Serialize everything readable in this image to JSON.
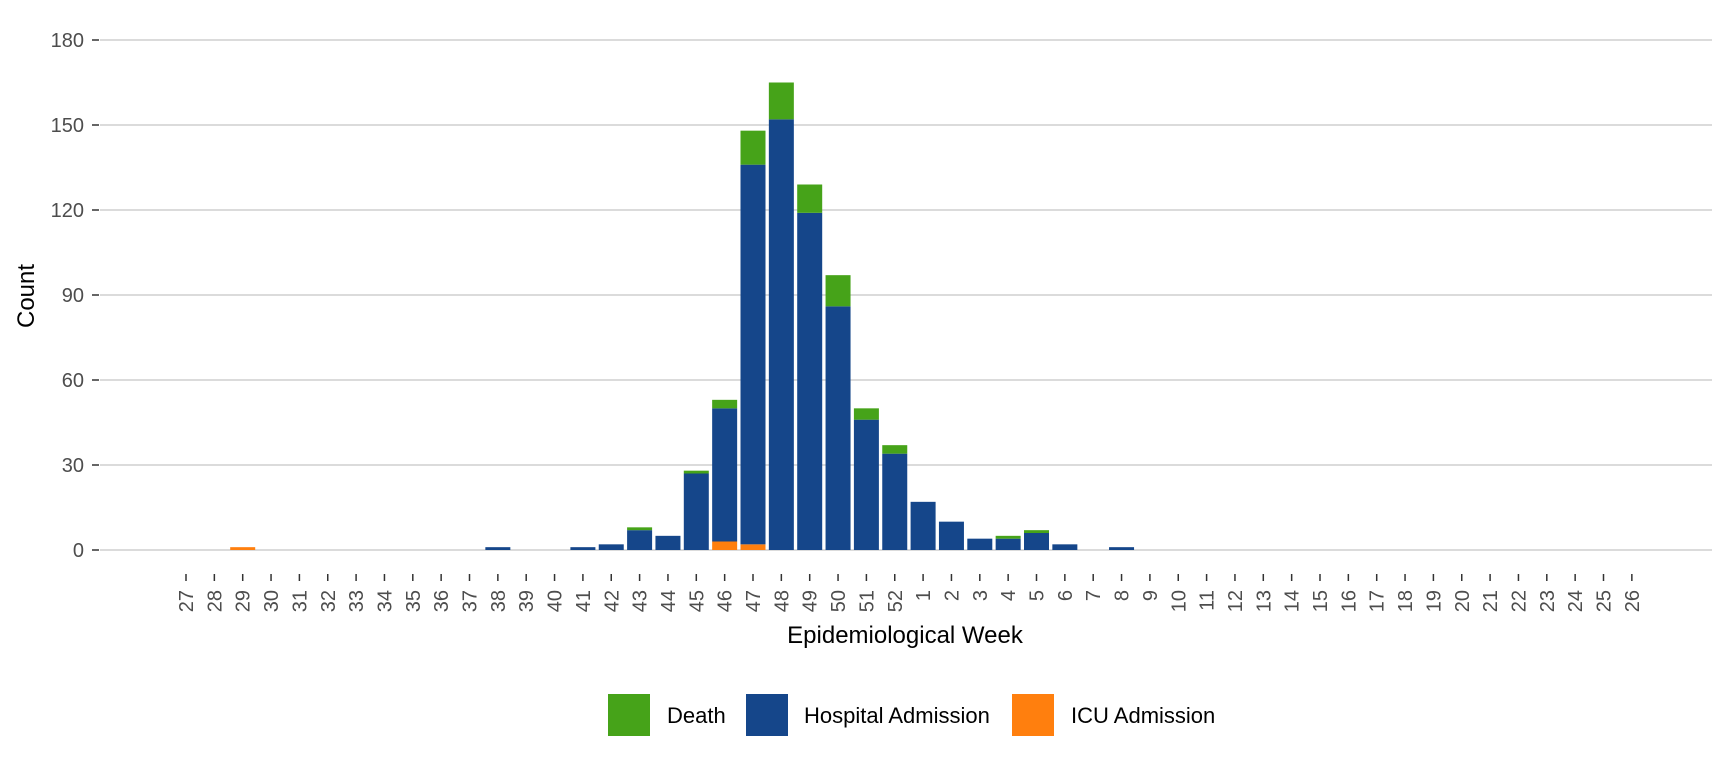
{
  "chart_data": {
    "type": "bar",
    "stacked": true,
    "title": "",
    "xlabel": "Epidemiological Week",
    "ylabel": "Count",
    "ylim": [
      0,
      180
    ],
    "yticks": [
      0,
      30,
      60,
      90,
      120,
      150,
      180
    ],
    "grid": "horizontal",
    "legend_position": "bottom",
    "categories": [
      "27",
      "28",
      "29",
      "30",
      "31",
      "32",
      "33",
      "34",
      "35",
      "36",
      "37",
      "38",
      "39",
      "40",
      "41",
      "42",
      "43",
      "44",
      "45",
      "46",
      "47",
      "48",
      "49",
      "50",
      "51",
      "52",
      "1",
      "2",
      "3",
      "4",
      "5",
      "6",
      "7",
      "8",
      "9",
      "10",
      "11",
      "12",
      "13",
      "14",
      "15",
      "16",
      "17",
      "18",
      "19",
      "20",
      "21",
      "22",
      "23",
      "24",
      "25",
      "26"
    ],
    "series": [
      {
        "name": "ICU Admission",
        "color": "#FF7F0E",
        "values": [
          0,
          0,
          1,
          0,
          0,
          0,
          0,
          0,
          0,
          0,
          0,
          0,
          0,
          0,
          0,
          0,
          0,
          0,
          0,
          3,
          2,
          0,
          0,
          0,
          0,
          0,
          0,
          0,
          0,
          0,
          0,
          0,
          0,
          0,
          0,
          0,
          0,
          0,
          0,
          0,
          0,
          0,
          0,
          0,
          0,
          0,
          0,
          0,
          0,
          0,
          0,
          0
        ]
      },
      {
        "name": "Hospital Admission",
        "color": "#15468A",
        "values": [
          0,
          0,
          0,
          0,
          0,
          0,
          0,
          0,
          0,
          0,
          0,
          1,
          0,
          0,
          1,
          2,
          7,
          5,
          27,
          47,
          134,
          152,
          119,
          86,
          46,
          34,
          17,
          10,
          4,
          4,
          6,
          2,
          0,
          1,
          0,
          0,
          0,
          0,
          0,
          0,
          0,
          0,
          0,
          0,
          0,
          0,
          0,
          0,
          0,
          0,
          0,
          0
        ]
      },
      {
        "name": "Death",
        "color": "#46A319",
        "values": [
          0,
          0,
          0,
          0,
          0,
          0,
          0,
          0,
          0,
          0,
          0,
          0,
          0,
          0,
          0,
          0,
          1,
          0,
          1,
          3,
          12,
          13,
          10,
          11,
          4,
          3,
          0,
          0,
          0,
          1,
          1,
          0,
          0,
          0,
          0,
          0,
          0,
          0,
          0,
          0,
          0,
          0,
          0,
          0,
          0,
          0,
          0,
          0,
          0,
          0,
          0,
          0
        ]
      }
    ],
    "legend": [
      {
        "name": "Death",
        "color": "#46A319"
      },
      {
        "name": "Hospital Admission",
        "color": "#15468A"
      },
      {
        "name": "ICU Admission",
        "color": "#FF7F0E"
      }
    ]
  }
}
